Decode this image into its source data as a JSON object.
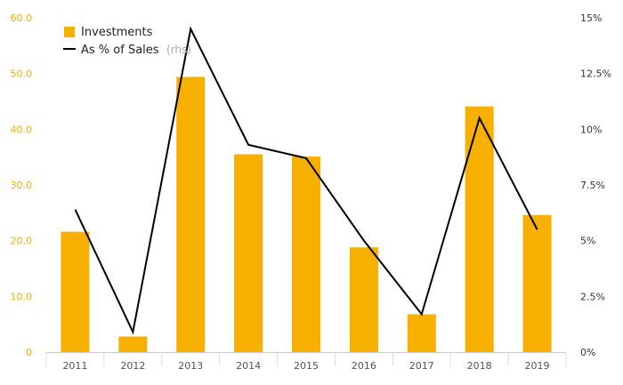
{
  "chart_data": {
    "type": "bar",
    "categories": [
      "2011",
      "2012",
      "2013",
      "2014",
      "2015",
      "2016",
      "2017",
      "2018",
      "2019"
    ],
    "series": [
      {
        "name": "Investments",
        "type": "bar",
        "axis": "left",
        "color": "#F8B000",
        "values": [
          21.6,
          2.8,
          49.4,
          35.5,
          35.1,
          18.8,
          6.8,
          44.1,
          24.6
        ]
      },
      {
        "name": "As % of Sales",
        "name_suffix": "(rhs)",
        "type": "line",
        "axis": "right",
        "color": "#000000",
        "values": [
          6.4,
          0.9,
          14.5,
          9.3,
          8.7,
          5.0,
          1.7,
          10.5,
          5.5
        ]
      }
    ],
    "y_left": {
      "lim": [
        0,
        60
      ],
      "ticks": [
        0,
        10,
        20,
        30,
        40,
        50,
        60
      ],
      "tick_labels": [
        "0",
        "10.0",
        "20.0",
        "30.0",
        "40.0",
        "50.0",
        "60.0"
      ],
      "color": "#F3AD00"
    },
    "y_right": {
      "lim": [
        0,
        15
      ],
      "ticks": [
        0,
        2.5,
        5,
        7.5,
        10,
        12.5,
        15
      ],
      "tick_labels": [
        "0%",
        "2.5%",
        "5%",
        "7.5%",
        "10%",
        "12.5%",
        "15%"
      ],
      "color": "#333333"
    },
    "grid": false,
    "legend_position": "top-left"
  }
}
